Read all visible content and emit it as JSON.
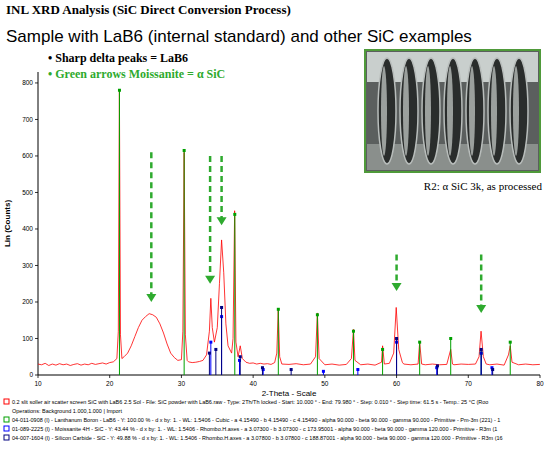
{
  "chart_data": {
    "type": "line",
    "title": "INL XRD Analysis (SiC Direct Conversion Process)",
    "subtitle": "Sample with LaB6 (internal standard) and other SiC examples",
    "annotations": [
      {
        "text": "• Sharp delta peaks = LaB6",
        "color": "#000000"
      },
      {
        "text": "• Green arrows Moissanite =  α SiC",
        "color": "#2eaa2e"
      }
    ],
    "photo_caption": "R2:  α SiC 3k, as processed",
    "x_label": "2-Theta - Scale",
    "y_label": "Lin (Counts)",
    "xlim": [
      10,
      80
    ],
    "ylim": [
      0,
      830
    ],
    "xticks": [
      10,
      20,
      30,
      40,
      50,
      60,
      70,
      80
    ],
    "yticks": [
      0,
      100,
      200,
      300,
      400,
      500,
      600,
      700,
      800
    ],
    "grid": false,
    "legend": "bottom",
    "legend_note": "Operations: Background 1.000,1.000 | Import",
    "arrows": [
      {
        "x": 25.8,
        "y_from": 610,
        "y_to": 200
      },
      {
        "x": 34.0,
        "y_from": 600,
        "y_to": 250
      },
      {
        "x": 35.6,
        "y_from": 600,
        "y_to": 410
      },
      {
        "x": 60.0,
        "y_from": 330,
        "y_to": 230
      },
      {
        "x": 71.8,
        "y_from": 330,
        "y_to": 170
      }
    ],
    "series": [
      {
        "name": "0.2 slit soller air scatter screen SiC with LaB6 2.5 Sol - File: SiC powder with LaB6.raw - Type: 2Th/Th locked - Start: 10.000 ° - End: 79.980 ° - Step: 0.010 ° - Step time: 61.5 s - Temp.: 25 °C (Roo",
        "type": "line",
        "color": "#ff0000",
        "line_style": "solid",
        "x": [
          10,
          10.5,
          11,
          11.5,
          12,
          12.5,
          13,
          13.5,
          14,
          14.5,
          15,
          15.5,
          16,
          16.5,
          17,
          17.5,
          18,
          18.5,
          19,
          19.5,
          20,
          20.5,
          21,
          21.2,
          21.35,
          21.5,
          21.7,
          22,
          22.5,
          23,
          23.5,
          24,
          24.5,
          25,
          25.5,
          26,
          26.5,
          27,
          27.5,
          28,
          28.5,
          29,
          29.5,
          30,
          30.2,
          30.38,
          30.55,
          30.8,
          31,
          31.5,
          32,
          32.5,
          33,
          33.5,
          33.9,
          34.1,
          34.3,
          34.6,
          35,
          35.3,
          35.6,
          35.9,
          36.2,
          36.5,
          37,
          37.2,
          37.42,
          37.6,
          37.9,
          38.2,
          38.5,
          39,
          39.5,
          40,
          40.5,
          41,
          41.5,
          42,
          42.5,
          43,
          43.3,
          43.5,
          43.7,
          44,
          45,
          46,
          47,
          48,
          48.7,
          48.96,
          49.2,
          50,
          51,
          52,
          53,
          53.7,
          53.99,
          54.2,
          55,
          56,
          57,
          57.9,
          58.05,
          58.3,
          59,
          59.6,
          59.95,
          60.3,
          60.8,
          61,
          62,
          63,
          63.22,
          63.5,
          64,
          65,
          66,
          67,
          67.55,
          67.8,
          68,
          69,
          70,
          71,
          71.5,
          71.78,
          72.1,
          72.5,
          73,
          74,
          75,
          75.6,
          75.85,
          76.1,
          77,
          78,
          79,
          79.98
        ],
        "values": [
          30,
          28,
          32,
          26,
          30,
          27,
          31,
          28,
          30,
          26,
          29,
          31,
          27,
          30,
          28,
          32,
          29,
          31,
          33,
          30,
          34,
          36,
          45,
          120,
          780,
          110,
          45,
          50,
          60,
          80,
          105,
          130,
          150,
          160,
          168,
          165,
          158,
          140,
          115,
          85,
          60,
          48,
          40,
          42,
          120,
          610,
          110,
          40,
          36,
          34,
          35,
          37,
          40,
          55,
          120,
          210,
          130,
          90,
          130,
          250,
          370,
          280,
          140,
          80,
          60,
          100,
          450,
          90,
          50,
          80,
          45,
          35,
          32,
          33,
          30,
          32,
          30,
          31,
          29,
          34,
          60,
          180,
          50,
          30,
          29,
          31,
          28,
          30,
          50,
          170,
          45,
          28,
          30,
          27,
          29,
          45,
          125,
          40,
          28,
          30,
          27,
          35,
          80,
          30,
          32,
          60,
          185,
          70,
          35,
          30,
          28,
          30,
          90,
          30,
          28,
          30,
          28,
          29,
          70,
          30,
          28,
          30,
          29,
          30,
          50,
          120,
          50,
          30,
          28,
          30,
          27,
          55,
          80,
          35,
          28,
          30,
          28,
          29
        ]
      },
      {
        "name": "04-011-0908 (I) - Lanthanum Boron - LaB6 - Y: 100.00 % - d x by: 1. - WL: 1.5406 - Cubic - a 4.15490 - b 4.15490 - c 4.15490 - alpha 90.000 - beta 90.000 - gamma 90.000 - Primitive - Pm-3m (221) - 1",
        "type": "stick",
        "color": "#00a000",
        "marker": "square",
        "x": [
          21.36,
          30.38,
          37.44,
          43.51,
          48.96,
          53.99,
          58.05,
          63.22,
          67.55,
          71.8,
          75.85
        ],
        "values": [
          780,
          615,
          440,
          180,
          165,
          120,
          70,
          90,
          100,
          60,
          90
        ]
      },
      {
        "name": "01-089-2225 (I) - Moissanite 4H - SiC - Y: 43.44 % - d x by: 1. - WL: 1.5406 - Rhombo.H.axes - a 3.07300 - b 3.07300 - c 173.95001 - alpha 90.000 - beta 90.000 - gamma 120.000 - Primitive - R3m (1",
        "type": "stick",
        "color": "#0000ff",
        "marker": "square",
        "x": [
          34.1,
          35.6,
          38.1,
          41.4,
          49.8,
          54.6,
          60.0,
          65.6,
          71.8,
          73.3
        ],
        "values": [
          90,
          160,
          40,
          15,
          10,
          15,
          90,
          20,
          60,
          20
        ]
      },
      {
        "name": "04-007-1604 (I) - Silicon Carbide - SiC - Y: 49.88 % - d x by: 1. - WL: 1.5406 - Rhombo.H.axes - a 3.07800 - b 3.07800 - c 188.87001 - alpha 90.000 - beta 90.000 - gamma 120.000 - Primitive - R3m (16",
        "type": "stick",
        "color": "#000080",
        "marker": "square",
        "x": [
          33.9,
          34.8,
          35.6,
          38.2,
          41.3,
          45.3,
          60.0,
          65.7,
          71.8,
          73.4
        ],
        "values": [
          60,
          70,
          185,
          50,
          20,
          15,
          100,
          25,
          70,
          15
        ]
      }
    ]
  }
}
